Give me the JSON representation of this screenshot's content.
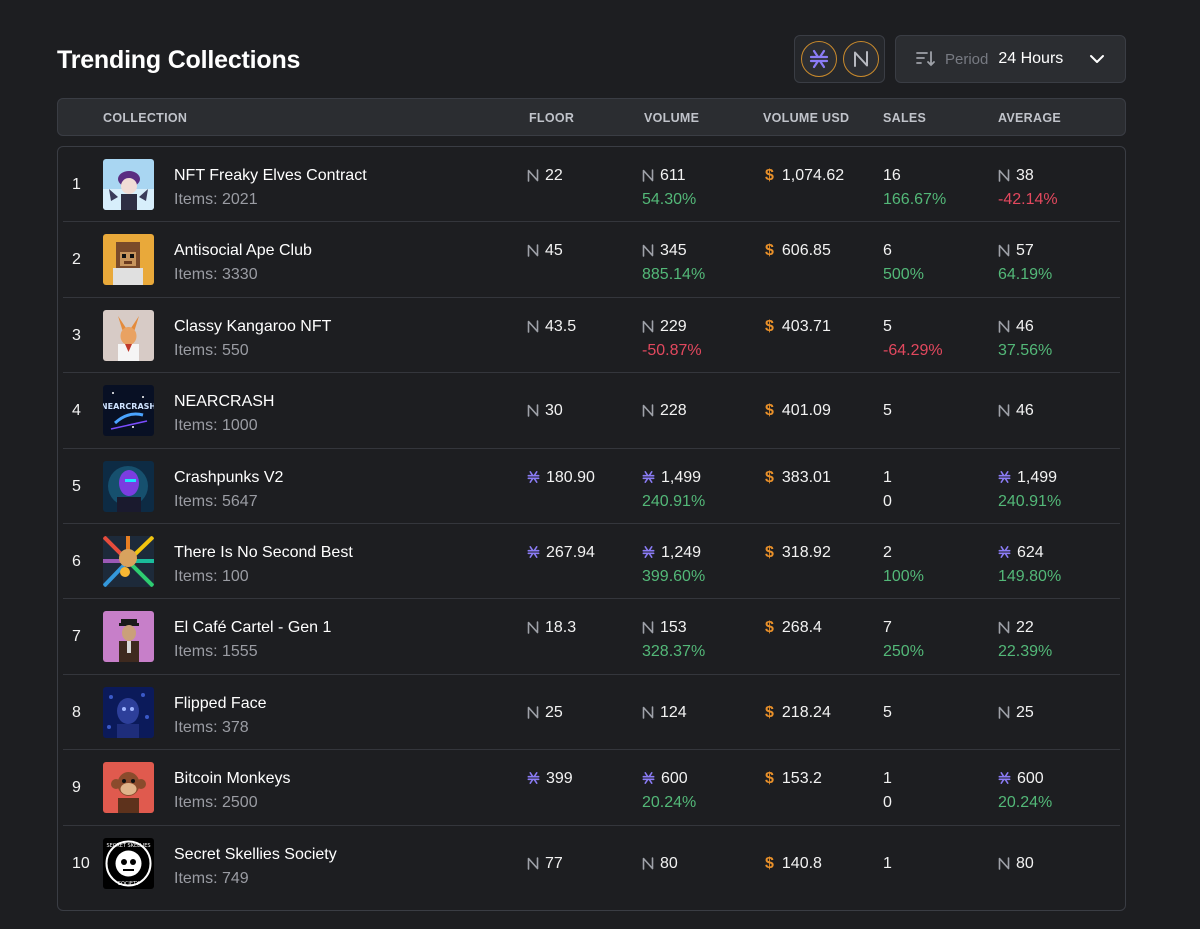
{
  "title": "Trending Collections",
  "period": {
    "label": "Period",
    "value": "24 Hours"
  },
  "chains": [
    "stacks-icon",
    "near-icon"
  ],
  "colors": {
    "positive": "#53b878",
    "negative": "#e2485e",
    "usd": "#e8902a",
    "stacks": "#8b7cf6"
  },
  "columns": {
    "collection": "COLLECTION",
    "floor": "FLOOR",
    "volume": "VOLUME",
    "volume_usd": "VOLUME USD",
    "sales": "SALES",
    "average": "AVERAGE"
  },
  "usd_symbol": "$",
  "rows": [
    {
      "rank": "1",
      "name": "NFT Freaky Elves Contract",
      "items": "Items: 2021",
      "currency": "near",
      "floor": "22",
      "volume": "611",
      "volume_change": "54.30%",
      "volume_usd": "1,074.62",
      "sales": "16",
      "sales_change": "166.67%",
      "average": "38",
      "average_change": "-42.14%"
    },
    {
      "rank": "2",
      "name": "Antisocial Ape Club",
      "items": "Items: 3330",
      "currency": "near",
      "floor": "45",
      "volume": "345",
      "volume_change": "885.14%",
      "volume_usd": "606.85",
      "sales": "6",
      "sales_change": "500%",
      "average": "57",
      "average_change": "64.19%"
    },
    {
      "rank": "3",
      "name": "Classy Kangaroo NFT",
      "items": "Items: 550",
      "currency": "near",
      "floor": "43.5",
      "volume": "229",
      "volume_change": "-50.87%",
      "volume_usd": "403.71",
      "sales": "5",
      "sales_change": "-64.29%",
      "average": "46",
      "average_change": "37.56%"
    },
    {
      "rank": "4",
      "name": "NEARCRASH",
      "items": "Items: 1000",
      "currency": "near",
      "floor": "30",
      "volume": "228",
      "volume_change": "",
      "volume_usd": "401.09",
      "sales": "5",
      "sales_change": "",
      "average": "46",
      "average_change": ""
    },
    {
      "rank": "5",
      "name": "Crashpunks V2",
      "items": "Items: 5647",
      "currency": "stacks",
      "floor": "180.90",
      "volume": "1,499",
      "volume_change": "240.91%",
      "volume_usd": "383.01",
      "sales": "1",
      "sales_change": "0",
      "average": "1,499",
      "average_change": "240.91%"
    },
    {
      "rank": "6",
      "name": "There Is No Second Best",
      "items": "Items: 100",
      "currency": "stacks",
      "floor": "267.94",
      "volume": "1,249",
      "volume_change": "399.60%",
      "volume_usd": "318.92",
      "sales": "2",
      "sales_change": "100%",
      "average": "624",
      "average_change": "149.80%"
    },
    {
      "rank": "7",
      "name": "El Café Cartel - Gen 1",
      "items": "Items: 1555",
      "currency": "near",
      "floor": "18.3",
      "volume": "153",
      "volume_change": "328.37%",
      "volume_usd": "268.4",
      "sales": "7",
      "sales_change": "250%",
      "average": "22",
      "average_change": "22.39%"
    },
    {
      "rank": "8",
      "name": "Flipped Face",
      "items": "Items: 378",
      "currency": "near",
      "floor": "25",
      "volume": "124",
      "volume_change": "",
      "volume_usd": "218.24",
      "sales": "5",
      "sales_change": "",
      "average": "25",
      "average_change": ""
    },
    {
      "rank": "9",
      "name": "Bitcoin Monkeys",
      "items": "Items: 2500",
      "currency": "stacks",
      "floor": "399",
      "volume": "600",
      "volume_change": "20.24%",
      "volume_usd": "153.2",
      "sales": "1",
      "sales_change": "0",
      "average": "600",
      "average_change": "20.24%"
    },
    {
      "rank": "10",
      "name": "Secret Skellies Society",
      "items": "Items: 749",
      "currency": "near",
      "floor": "77",
      "volume": "80",
      "volume_change": "",
      "volume_usd": "140.8",
      "sales": "1",
      "sales_change": "",
      "average": "80",
      "average_change": ""
    }
  ]
}
